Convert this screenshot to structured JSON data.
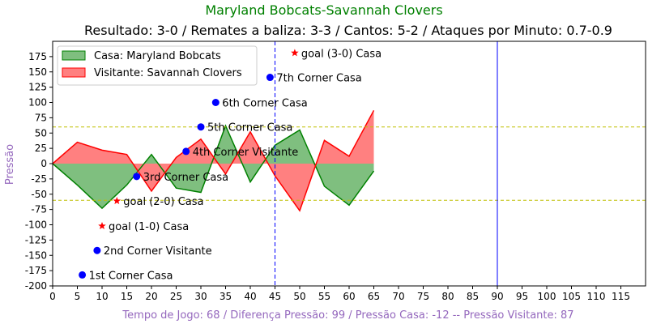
{
  "colors": {
    "title": "#008000",
    "subtitle": "#000000",
    "xlabel": "#9467bd",
    "ylabel": "#9467bd",
    "home_fill": "#7fbf7f",
    "home_line": "#008000",
    "away_fill": "#ff8080",
    "away_line": "#ff0000",
    "marker": "#0000ff",
    "goal_marker": "#ff0000",
    "threshold": "#bfbf00",
    "halftime": "#0000ff",
    "fulltime": "#0000ff"
  },
  "chart_data": {
    "type": "area",
    "title": "Maryland Bobcats-Savannah Clovers",
    "subtitle": "Resultado: 3-0 / Remates a baliza: 3-3 / Cantos: 5-2 / Ataques por Minuto: 0.7-0.9",
    "xlabel": "Tempo de Jogo: 68 / Diferença Pressão: 99 / Pressão Casa: -12 -- Pressão Visitante: 87",
    "ylabel": "Pressão",
    "xlim": [
      0,
      120
    ],
    "ylim": [
      -200,
      200
    ],
    "xticks": [
      0,
      5,
      10,
      15,
      20,
      25,
      30,
      35,
      40,
      45,
      50,
      55,
      60,
      65,
      70,
      75,
      80,
      85,
      90,
      95,
      100,
      105,
      110,
      115
    ],
    "yticks": [
      -200,
      -175,
      -150,
      -125,
      -100,
      -75,
      -50,
      -25,
      0,
      25,
      50,
      75,
      100,
      125,
      150,
      175
    ],
    "legend_position": "top-left",
    "series": [
      {
        "name": "Casa: Maryland Bobcats",
        "x": [
          0,
          5,
          10,
          15,
          20,
          25,
          30,
          35,
          40,
          45,
          50,
          55,
          60,
          65
        ],
        "values": [
          0,
          -35,
          -73,
          -35,
          15,
          -40,
          -47,
          62,
          -30,
          30,
          55,
          -37,
          -68,
          -12
        ]
      },
      {
        "name": "Visitante: Savannah Clovers",
        "x": [
          0,
          5,
          10,
          15,
          20,
          25,
          30,
          35,
          40,
          45,
          50,
          55,
          60,
          65
        ],
        "values": [
          0,
          35,
          22,
          15,
          -45,
          10,
          40,
          -17,
          52,
          -20,
          -77,
          38,
          12,
          87
        ]
      }
    ],
    "hlines": [
      60,
      -60
    ],
    "vlines": [
      {
        "x": 45,
        "style": "dashed"
      },
      {
        "x": 90,
        "style": "solid"
      }
    ],
    "annotations": [
      {
        "x": 6,
        "y": -182,
        "label": "1st Corner Casa",
        "marker": "dot"
      },
      {
        "x": 9,
        "y": -142,
        "label": "2nd Corner Visitante",
        "marker": "dot"
      },
      {
        "x": 10,
        "y": -102,
        "label": "goal (1-0) Casa",
        "marker": "star"
      },
      {
        "x": 13,
        "y": -61,
        "label": "goal (2-0) Casa",
        "marker": "star"
      },
      {
        "x": 17,
        "y": -21,
        "label": "3rd Corner Casa",
        "marker": "dot"
      },
      {
        "x": 27,
        "y": 20,
        "label": "4th Corner Visitante",
        "marker": "dot"
      },
      {
        "x": 30,
        "y": 60,
        "label": "5th Corner Casa",
        "marker": "dot"
      },
      {
        "x": 33,
        "y": 100,
        "label": "6th Corner Casa",
        "marker": "dot"
      },
      {
        "x": 44,
        "y": 141,
        "label": "7th Corner Casa",
        "marker": "dot"
      },
      {
        "x": 49,
        "y": 181,
        "label": "goal (3-0) Casa",
        "marker": "star"
      }
    ]
  }
}
